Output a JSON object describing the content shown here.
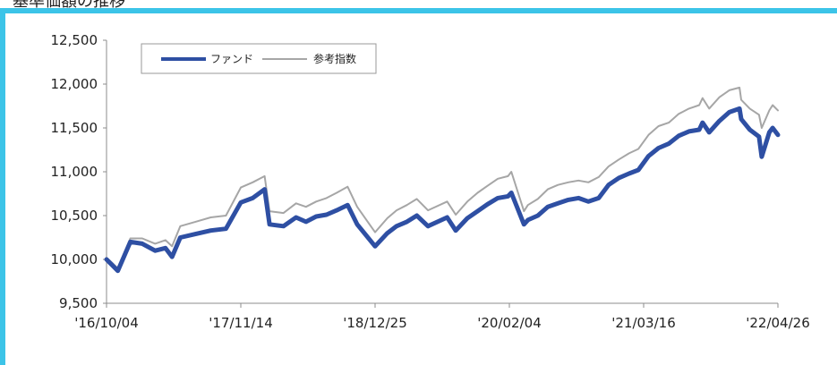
{
  "page": {
    "heading": "基準価額の推移",
    "accent_color": "#3cc4e8"
  },
  "chart_data": {
    "type": "line",
    "title": "",
    "xlabel": "",
    "ylabel": "",
    "ylim": [
      9500,
      12500
    ],
    "yticks": [
      "9,500",
      "10,000",
      "10,500",
      "11,000",
      "11,500",
      "12,000",
      "12,500"
    ],
    "ytick_values": [
      9500,
      10000,
      10500,
      11000,
      11500,
      12000,
      12500
    ],
    "xticks": [
      "'16/10/04",
      "'17/11/14",
      "'18/12/25",
      "'20/02/04",
      "'21/03/16",
      "'22/04/26"
    ],
    "xlim": [
      "2016-10-04",
      "2022-04-26"
    ],
    "grid": false,
    "legend_position": "top-left",
    "series": [
      {
        "name": "ファンド",
        "color": "#2e4fa3",
        "points": [
          [
            "2016-10-04",
            10000
          ],
          [
            "2016-11-07",
            9870
          ],
          [
            "2016-12-15",
            10200
          ],
          [
            "2017-01-20",
            10180
          ],
          [
            "2017-02-28",
            10100
          ],
          [
            "2017-03-31",
            10130
          ],
          [
            "2017-04-20",
            10030
          ],
          [
            "2017-05-15",
            10250
          ],
          [
            "2017-06-30",
            10290
          ],
          [
            "2017-08-15",
            10330
          ],
          [
            "2017-09-30",
            10350
          ],
          [
            "2017-11-14",
            10650
          ],
          [
            "2017-12-20",
            10700
          ],
          [
            "2018-01-25",
            10800
          ],
          [
            "2018-02-09",
            10400
          ],
          [
            "2018-03-23",
            10380
          ],
          [
            "2018-04-30",
            10480
          ],
          [
            "2018-05-30",
            10430
          ],
          [
            "2018-06-30",
            10490
          ],
          [
            "2018-07-31",
            10510
          ],
          [
            "2018-08-31",
            10560
          ],
          [
            "2018-10-03",
            10620
          ],
          [
            "2018-11-01",
            10400
          ],
          [
            "2018-12-25",
            10150
          ],
          [
            "2019-01-31",
            10300
          ],
          [
            "2019-02-28",
            10380
          ],
          [
            "2019-03-31",
            10430
          ],
          [
            "2019-04-30",
            10500
          ],
          [
            "2019-06-03",
            10380
          ],
          [
            "2019-07-31",
            10480
          ],
          [
            "2019-08-26",
            10330
          ],
          [
            "2019-09-30",
            10470
          ],
          [
            "2019-10-31",
            10550
          ],
          [
            "2019-11-30",
            10630
          ],
          [
            "2019-12-31",
            10700
          ],
          [
            "2020-01-31",
            10720
          ],
          [
            "2020-02-10",
            10760
          ],
          [
            "2020-03-19",
            10400
          ],
          [
            "2020-03-31",
            10450
          ],
          [
            "2020-04-30",
            10500
          ],
          [
            "2020-05-30",
            10600
          ],
          [
            "2020-06-30",
            10640
          ],
          [
            "2020-07-31",
            10680
          ],
          [
            "2020-08-31",
            10700
          ],
          [
            "2020-09-30",
            10660
          ],
          [
            "2020-10-31",
            10700
          ],
          [
            "2020-11-30",
            10850
          ],
          [
            "2020-12-31",
            10930
          ],
          [
            "2021-01-31",
            10980
          ],
          [
            "2021-02-28",
            11020
          ],
          [
            "2021-03-31",
            11180
          ],
          [
            "2021-04-30",
            11270
          ],
          [
            "2021-05-31",
            11320
          ],
          [
            "2021-06-30",
            11410
          ],
          [
            "2021-07-31",
            11460
          ],
          [
            "2021-08-31",
            11480
          ],
          [
            "2021-09-10",
            11560
          ],
          [
            "2021-09-30",
            11450
          ],
          [
            "2021-10-31",
            11580
          ],
          [
            "2021-11-30",
            11680
          ],
          [
            "2021-12-31",
            11720
          ],
          [
            "2022-01-05",
            11600
          ],
          [
            "2022-01-31",
            11480
          ],
          [
            "2022-02-28",
            11400
          ],
          [
            "2022-03-08",
            11170
          ],
          [
            "2022-03-31",
            11450
          ],
          [
            "2022-04-10",
            11500
          ],
          [
            "2022-04-26",
            11420
          ]
        ]
      },
      {
        "name": "参考指数",
        "color": "#a6a6a6",
        "points": [
          [
            "2016-10-04",
            10020
          ],
          [
            "2016-11-07",
            9900
          ],
          [
            "2016-12-15",
            10240
          ],
          [
            "2017-01-20",
            10240
          ],
          [
            "2017-02-28",
            10180
          ],
          [
            "2017-03-31",
            10220
          ],
          [
            "2017-04-20",
            10150
          ],
          [
            "2017-05-15",
            10380
          ],
          [
            "2017-06-30",
            10430
          ],
          [
            "2017-08-15",
            10480
          ],
          [
            "2017-09-30",
            10500
          ],
          [
            "2017-11-14",
            10820
          ],
          [
            "2017-12-20",
            10880
          ],
          [
            "2018-01-25",
            10950
          ],
          [
            "2018-02-09",
            10550
          ],
          [
            "2018-03-23",
            10530
          ],
          [
            "2018-04-30",
            10640
          ],
          [
            "2018-05-30",
            10600
          ],
          [
            "2018-06-30",
            10660
          ],
          [
            "2018-07-31",
            10700
          ],
          [
            "2018-08-31",
            10760
          ],
          [
            "2018-10-03",
            10830
          ],
          [
            "2018-11-01",
            10600
          ],
          [
            "2018-12-25",
            10310
          ],
          [
            "2019-01-31",
            10470
          ],
          [
            "2019-02-28",
            10560
          ],
          [
            "2019-03-31",
            10620
          ],
          [
            "2019-04-30",
            10690
          ],
          [
            "2019-06-03",
            10560
          ],
          [
            "2019-07-31",
            10660
          ],
          [
            "2019-08-26",
            10510
          ],
          [
            "2019-09-30",
            10660
          ],
          [
            "2019-10-31",
            10760
          ],
          [
            "2019-11-30",
            10840
          ],
          [
            "2019-12-31",
            10920
          ],
          [
            "2020-01-31",
            10950
          ],
          [
            "2020-02-10",
            11000
          ],
          [
            "2020-03-19",
            10550
          ],
          [
            "2020-03-31",
            10620
          ],
          [
            "2020-04-30",
            10690
          ],
          [
            "2020-05-30",
            10800
          ],
          [
            "2020-06-30",
            10850
          ],
          [
            "2020-07-31",
            10880
          ],
          [
            "2020-08-31",
            10900
          ],
          [
            "2020-09-30",
            10880
          ],
          [
            "2020-10-31",
            10940
          ],
          [
            "2020-11-30",
            11060
          ],
          [
            "2020-12-31",
            11140
          ],
          [
            "2021-01-31",
            11210
          ],
          [
            "2021-02-28",
            11260
          ],
          [
            "2021-03-31",
            11420
          ],
          [
            "2021-04-30",
            11520
          ],
          [
            "2021-05-31",
            11560
          ],
          [
            "2021-06-30",
            11660
          ],
          [
            "2021-07-31",
            11720
          ],
          [
            "2021-08-31",
            11760
          ],
          [
            "2021-09-10",
            11840
          ],
          [
            "2021-09-30",
            11720
          ],
          [
            "2021-10-31",
            11850
          ],
          [
            "2021-11-30",
            11930
          ],
          [
            "2021-12-31",
            11960
          ],
          [
            "2022-01-05",
            11820
          ],
          [
            "2022-01-31",
            11720
          ],
          [
            "2022-02-28",
            11650
          ],
          [
            "2022-03-08",
            11500
          ],
          [
            "2022-03-31",
            11700
          ],
          [
            "2022-04-10",
            11760
          ],
          [
            "2022-04-26",
            11700
          ]
        ]
      }
    ]
  }
}
